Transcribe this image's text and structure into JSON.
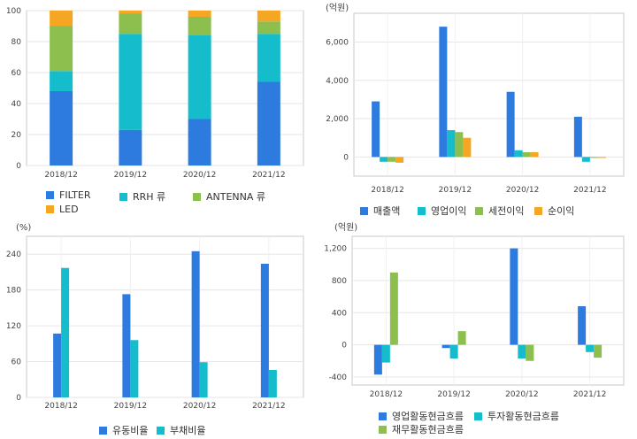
{
  "chart_data": [
    {
      "id": "sales-composition",
      "type": "bar",
      "stacked": true,
      "unit": "",
      "categories": [
        "2018/12",
        "2019/12",
        "2020/12",
        "2021/12"
      ],
      "ylim": [
        0,
        100
      ],
      "yticks": [
        0,
        20,
        40,
        60,
        80,
        100
      ],
      "grid": true,
      "legend_position": "bottom",
      "series": [
        {
          "name": "FILTER",
          "color": "#2e7be0",
          "values": [
            48,
            23,
            30,
            54
          ]
        },
        {
          "name": "RRH 류",
          "color": "#14bccc",
          "values": [
            13,
            62,
            54,
            31
          ]
        },
        {
          "name": "ANTENNA 류",
          "color": "#8cbf4e",
          "values": [
            29,
            13,
            12,
            8
          ]
        },
        {
          "name": "LED",
          "color": "#f5a623",
          "values": [
            10,
            2,
            4,
            7
          ]
        }
      ]
    },
    {
      "id": "income-statement",
      "type": "bar",
      "unit": "(억원)",
      "categories": [
        "2018/12",
        "2019/12",
        "2020/12",
        "2021/12"
      ],
      "ylim": [
        -1000,
        7500
      ],
      "yticks": [
        0,
        2000,
        4000,
        6000
      ],
      "ytick_labels": [
        "0",
        "2,000",
        "4,000",
        "6,000"
      ],
      "grid": true,
      "legend_position": "bottom",
      "series": [
        {
          "name": "매출액",
          "color": "#2e7be0",
          "values": [
            2900,
            6800,
            3400,
            2100
          ]
        },
        {
          "name": "영업이익",
          "color": "#14bccc",
          "values": [
            -250,
            1400,
            350,
            -250
          ]
        },
        {
          "name": "세전이익",
          "color": "#8cbf4e",
          "values": [
            -250,
            1300,
            250,
            -50
          ]
        },
        {
          "name": "순이익",
          "color": "#f5a623",
          "values": [
            -300,
            1000,
            250,
            -50
          ]
        }
      ]
    },
    {
      "id": "ratios",
      "type": "bar",
      "unit": "(%)",
      "categories": [
        "2018/12",
        "2019/12",
        "2020/12",
        "2021/12"
      ],
      "ylim": [
        0,
        270
      ],
      "yticks": [
        0,
        60,
        120,
        180,
        240
      ],
      "grid": true,
      "legend_position": "bottom",
      "series": [
        {
          "name": "유동비율",
          "color": "#2e7be0",
          "values": [
            107,
            173,
            245,
            224
          ]
        },
        {
          "name": "부채비율",
          "color": "#14bccc",
          "values": [
            217,
            96,
            59,
            46
          ]
        }
      ]
    },
    {
      "id": "cash-flow",
      "type": "bar",
      "unit": "(억원)",
      "categories": [
        "2018/12",
        "2019/12",
        "2020/12",
        "2021/12"
      ],
      "ylim": [
        -500,
        1350
      ],
      "yticks": [
        -400,
        0,
        400,
        800,
        1200
      ],
      "ytick_labels": [
        "-400",
        "0",
        "400",
        "800",
        "1,200"
      ],
      "grid": true,
      "legend_position": "bottom",
      "series": [
        {
          "name": "영업활동현금흐름",
          "color": "#2e7be0",
          "values": [
            -370,
            -40,
            1200,
            480
          ]
        },
        {
          "name": "투자활동현금흐름",
          "color": "#14bccc",
          "values": [
            -220,
            -170,
            -170,
            -90
          ]
        },
        {
          "name": "재무활동현금흐름",
          "color": "#8cbf4e",
          "values": [
            900,
            170,
            -200,
            -160
          ]
        }
      ]
    }
  ]
}
